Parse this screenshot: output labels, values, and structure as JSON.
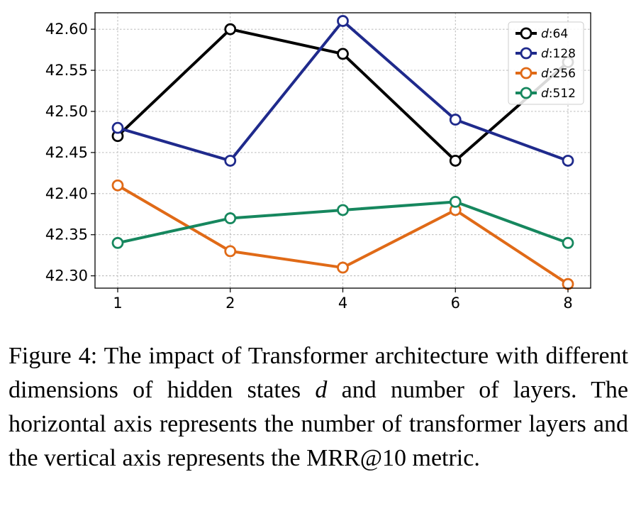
{
  "chart_data": {
    "type": "line",
    "x": [
      "1",
      "2",
      "4",
      "6",
      "8"
    ],
    "series": [
      {
        "name_var": "d",
        "name_value": ":64",
        "color": "#000000",
        "values": [
          42.47,
          42.6,
          42.57,
          42.44,
          42.56
        ]
      },
      {
        "name_var": "d",
        "name_value": ":128",
        "color": "#1f2a8c",
        "values": [
          42.48,
          42.44,
          42.61,
          42.49,
          42.44
        ]
      },
      {
        "name_var": "d",
        "name_value": ":256",
        "color": "#e06a17",
        "values": [
          42.41,
          42.33,
          42.31,
          42.38,
          42.29
        ]
      },
      {
        "name_var": "d",
        "name_value": ":512",
        "color": "#16875e",
        "values": [
          42.34,
          42.37,
          42.38,
          42.39,
          42.34
        ]
      }
    ],
    "yticks": [
      "42.30",
      "42.35",
      "42.40",
      "42.45",
      "42.50",
      "42.55",
      "42.60"
    ],
    "ylim": [
      42.285,
      42.62
    ],
    "grid": true,
    "legend_position": "top-right"
  },
  "caption": {
    "lead": "Figure 4: The impact of Transformer architecture with different dimensions of hidden states ",
    "var": "d",
    "tail": " and number of layers.  The horizontal axis represents the number of transformer layers and the vertical axis represents the MRR@10 metric."
  }
}
